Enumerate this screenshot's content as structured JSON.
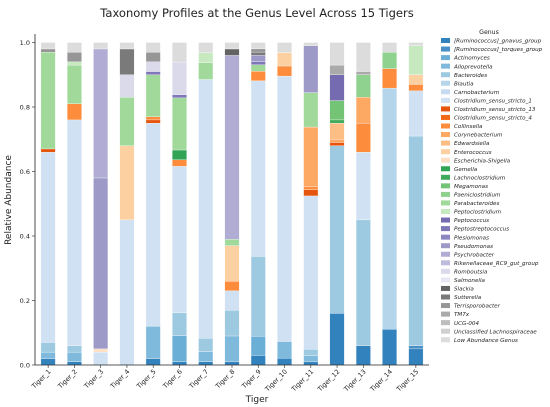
{
  "chart_data": {
    "type": "bar",
    "stacked": true,
    "title": "Taxonomy Profiles at the Genus Level Across 15 Tigers",
    "xlabel": "Tiger",
    "ylabel": "Relative Abundance",
    "ylim": [
      0,
      1.0
    ],
    "yticks": [
      "0.0",
      "0.2",
      "0.4",
      "0.6",
      "0.8",
      "1.0"
    ],
    "legend_title": "Genus",
    "legend_placement": "right",
    "categories": [
      "Tiger_1",
      "Tiger_2",
      "Tiger_3",
      "Tiger_4",
      "Tiger_5",
      "Tiger_6",
      "Tiger_7",
      "Tiger_8",
      "Tiger_9",
      "Tiger_10",
      "Tiger_11",
      "Tiger_12",
      "Tiger_13",
      "Tiger_14",
      "Tiger_15"
    ],
    "series": [
      {
        "name": "[Ruminococcus]_gnavus_group",
        "color": "#3182bd",
        "values": [
          0.02,
          0.01,
          0.0,
          0.0,
          0.02,
          0.01,
          0.01,
          0.01,
          0.03,
          0.02,
          0.01,
          0.16,
          0.06,
          0.11,
          0.05
        ]
      },
      {
        "name": "[Ruminococcus]_torques_group",
        "color": "#4a8fc6",
        "values": [
          0.0,
          0.0,
          0.0,
          0.0,
          0.0,
          0.0,
          0.0,
          0.0,
          0.0,
          0.0,
          0.0,
          0.0,
          0.0,
          0.0,
          0.01
        ]
      },
      {
        "name": "Actinomyces",
        "color": "#6baed6",
        "values": [
          0.0,
          0.0,
          0.0,
          0.0,
          0.0,
          0.08,
          0.0,
          0.0,
          0.06,
          0.0,
          0.0,
          0.0,
          0.0,
          0.0,
          0.0
        ]
      },
      {
        "name": "Alloprevotella",
        "color": "#7fbadc",
        "values": [
          0.02,
          0.03,
          0.0,
          0.0,
          0.1,
          0.0,
          0.03,
          0.08,
          0.0,
          0.05,
          0.02,
          0.0,
          0.0,
          0.0,
          0.0
        ]
      },
      {
        "name": "Bacteroides",
        "color": "#9ecae1",
        "values": [
          0.03,
          0.02,
          0.0,
          0.0,
          0.0,
          0.07,
          0.04,
          0.08,
          0.25,
          0.0,
          0.02,
          0.52,
          0.39,
          0.0,
          0.65
        ]
      },
      {
        "name": "Blautia",
        "color": "#b5d6ea",
        "values": [
          0.0,
          0.0,
          0.0,
          0.0,
          0.0,
          0.0,
          0.0,
          0.0,
          0.0,
          0.0,
          0.0,
          0.0,
          0.0,
          0.74,
          0.0
        ]
      },
      {
        "name": "Carnobacterium",
        "color": "#c6dbef",
        "values": [
          0.0,
          0.0,
          0.0,
          0.0,
          0.0,
          0.0,
          0.0,
          0.0,
          0.0,
          0.0,
          0.0,
          0.0,
          0.0,
          0.0,
          0.0
        ]
      },
      {
        "name": "Clostridium_sensu_stricto_1",
        "color": "#cfe1f2",
        "values": [
          0.59,
          0.7,
          0.04,
          0.45,
          0.63,
          0.45,
          0.77,
          0.06,
          0.55,
          0.79,
          0.49,
          0.0,
          0.21,
          0.0,
          0.14
        ]
      },
      {
        "name": "Clostridium_sensu_stricto_13",
        "color": "#e6550d",
        "values": [
          0.01,
          0.0,
          0.0,
          0.0,
          0.01,
          0.0,
          0.0,
          0.0,
          0.0,
          0.0,
          0.02,
          0.01,
          0.0,
          0.0,
          0.0
        ]
      },
      {
        "name": "Clostridium_sensu_stricto_4",
        "color": "#f16913",
        "values": [
          0.0,
          0.0,
          0.0,
          0.0,
          0.0,
          0.0,
          0.0,
          0.0,
          0.0,
          0.0,
          0.0,
          0.0,
          0.0,
          0.0,
          0.0
        ]
      },
      {
        "name": "Collinsella",
        "color": "#fd8d3c",
        "values": [
          0.0,
          0.05,
          0.0,
          0.0,
          0.01,
          0.02,
          0.0,
          0.03,
          0.03,
          0.03,
          0.01,
          0.0,
          0.09,
          0.06,
          0.02
        ]
      },
      {
        "name": "Corynebacterium",
        "color": "#fda863",
        "values": [
          0.0,
          0.0,
          0.0,
          0.0,
          0.0,
          0.0,
          0.0,
          0.0,
          0.0,
          0.0,
          0.19,
          0.01,
          0.08,
          0.0,
          0.0
        ]
      },
      {
        "name": "Edwardsiella",
        "color": "#fdbe85",
        "values": [
          0.0,
          0.0,
          0.0,
          0.0,
          0.0,
          0.0,
          0.0,
          0.0,
          0.0,
          0.0,
          0.0,
          0.05,
          0.0,
          0.0,
          0.0
        ]
      },
      {
        "name": "Enterococcus",
        "color": "#fdd0a2",
        "values": [
          0.0,
          0.0,
          0.0,
          0.23,
          0.0,
          0.0,
          0.0,
          0.11,
          0.0,
          0.04,
          0.0,
          0.0,
          0.0,
          0.0,
          0.03
        ]
      },
      {
        "name": "Escherichia-Shigella",
        "color": "#fde0c5",
        "values": [
          0.0,
          0.0,
          0.01,
          0.0,
          0.0,
          0.0,
          0.0,
          0.0,
          0.0,
          0.0,
          0.0,
          0.0,
          0.0,
          0.0,
          0.0
        ]
      },
      {
        "name": "Gemella",
        "color": "#31a354",
        "values": [
          0.0,
          0.0,
          0.0,
          0.0,
          0.0,
          0.03,
          0.0,
          0.0,
          0.0,
          0.0,
          0.0,
          0.0,
          0.0,
          0.0,
          0.0
        ]
      },
      {
        "name": "Lachnoclostridium",
        "color": "#41ab5d",
        "values": [
          0.0,
          0.0,
          0.0,
          0.0,
          0.0,
          0.0,
          0.0,
          0.0,
          0.0,
          0.0,
          0.0,
          0.01,
          0.0,
          0.0,
          0.0
        ]
      },
      {
        "name": "Megamonas",
        "color": "#74c476",
        "values": [
          0.0,
          0.0,
          0.0,
          0.0,
          0.0,
          0.0,
          0.0,
          0.0,
          0.0,
          0.0,
          0.0,
          0.06,
          0.0,
          0.0,
          0.0
        ]
      },
      {
        "name": "Paeniclostridium",
        "color": "#8fd18f",
        "values": [
          0.0,
          0.0,
          0.0,
          0.0,
          0.0,
          0.0,
          0.0,
          0.0,
          0.0,
          0.0,
          0.0,
          0.0,
          0.07,
          0.05,
          0.0
        ]
      },
      {
        "name": "Parabacteroides",
        "color": "#a1d99b",
        "values": [
          0.3,
          0.12,
          0.0,
          0.15,
          0.13,
          0.16,
          0.05,
          0.02,
          0.02,
          0.0,
          0.11,
          0.0,
          0.0,
          0.0,
          0.0
        ]
      },
      {
        "name": "Peptoclostridium",
        "color": "#c7e9c0",
        "values": [
          0.0,
          0.01,
          0.0,
          0.0,
          0.0,
          0.0,
          0.03,
          0.0,
          0.0,
          0.0,
          0.0,
          0.0,
          0.0,
          0.0,
          0.09
        ]
      },
      {
        "name": "Peptococcus",
        "color": "#756bb1",
        "values": [
          0.0,
          0.0,
          0.0,
          0.0,
          0.0,
          0.0,
          0.0,
          0.0,
          0.0,
          0.0,
          0.0,
          0.08,
          0.0,
          0.0,
          0.0
        ]
      },
      {
        "name": "Peptostreptococcus",
        "color": "#7e77b8",
        "values": [
          0.0,
          0.0,
          0.0,
          0.0,
          0.01,
          0.01,
          0.0,
          0.0,
          0.01,
          0.0,
          0.0,
          0.0,
          0.0,
          0.0,
          0.0
        ]
      },
      {
        "name": "Plesiomonas",
        "color": "#8c86c0",
        "values": [
          0.0,
          0.0,
          0.0,
          0.0,
          0.0,
          0.0,
          0.0,
          0.0,
          0.0,
          0.0,
          0.0,
          0.0,
          0.0,
          0.0,
          0.0
        ]
      },
      {
        "name": "Pseudomonas",
        "color": "#9e9ac8",
        "values": [
          0.0,
          0.0,
          0.53,
          0.0,
          0.0,
          0.0,
          0.0,
          0.0,
          0.02,
          0.0,
          0.15,
          0.0,
          0.0,
          0.0,
          0.0
        ]
      },
      {
        "name": "Psychrobacter",
        "color": "#b0acd4",
        "values": [
          0.0,
          0.0,
          0.4,
          0.0,
          0.0,
          0.0,
          0.0,
          0.57,
          0.0,
          0.0,
          0.0,
          0.0,
          0.0,
          0.0,
          0.0
        ]
      },
      {
        "name": "Rikenellaceae_RC9_gut_group",
        "color": "#bcbddc",
        "values": [
          0.0,
          0.0,
          0.0,
          0.0,
          0.0,
          0.0,
          0.0,
          0.0,
          0.0,
          0.0,
          0.0,
          0.0,
          0.0,
          0.0,
          0.0
        ]
      },
      {
        "name": "Romboutsia",
        "color": "#dadaeb",
        "values": [
          0.0,
          0.0,
          0.0,
          0.07,
          0.03,
          0.1,
          0.0,
          0.0,
          0.0,
          0.0,
          0.0,
          0.0,
          0.0,
          0.0,
          0.0
        ]
      },
      {
        "name": "Salmonella",
        "color": "#e8e8f2",
        "values": [
          0.0,
          0.0,
          0.0,
          0.0,
          0.0,
          0.0,
          0.0,
          0.0,
          0.0,
          0.0,
          0.0,
          0.0,
          0.0,
          0.0,
          0.0
        ]
      },
      {
        "name": "Slackia",
        "color": "#636363",
        "values": [
          0.0,
          0.0,
          0.0,
          0.0,
          0.0,
          0.0,
          0.0,
          0.02,
          0.0,
          0.0,
          0.0,
          0.0,
          0.0,
          0.0,
          0.0
        ]
      },
      {
        "name": "Sutterella",
        "color": "#7a7a7a",
        "values": [
          0.0,
          0.0,
          0.0,
          0.08,
          0.0,
          0.0,
          0.0,
          0.0,
          0.01,
          0.0,
          0.0,
          0.0,
          0.0,
          0.0,
          0.0
        ]
      },
      {
        "name": "Terrisporobacter",
        "color": "#969696",
        "values": [
          0.01,
          0.03,
          0.0,
          0.0,
          0.03,
          0.0,
          0.0,
          0.0,
          0.01,
          0.0,
          0.0,
          0.0,
          0.0,
          0.0,
          0.0
        ]
      },
      {
        "name": "TM7x",
        "color": "#aaaaaa",
        "values": [
          0.0,
          0.0,
          0.0,
          0.0,
          0.0,
          0.0,
          0.0,
          0.0,
          0.0,
          0.0,
          0.0,
          0.03,
          0.01,
          0.0,
          0.0
        ]
      },
      {
        "name": "UCG-004",
        "color": "#bdbdbd",
        "values": [
          0.0,
          0.0,
          0.0,
          0.0,
          0.0,
          0.0,
          0.0,
          0.0,
          0.0,
          0.0,
          0.0,
          0.0,
          0.0,
          0.0,
          0.0
        ]
      },
      {
        "name": "Unclassified Lachnospiraceae",
        "color": "#d0d0d0",
        "values": [
          0.0,
          0.0,
          0.0,
          0.0,
          0.0,
          0.0,
          0.0,
          0.0,
          0.0,
          0.0,
          0.0,
          0.0,
          0.0,
          0.0,
          0.0
        ]
      },
      {
        "name": "Low Abundance Genus",
        "color": "#dcdcdc",
        "values": [
          0.02,
          0.03,
          0.02,
          0.02,
          0.03,
          0.06,
          0.03,
          0.02,
          0.02,
          0.03,
          0.01,
          0.07,
          0.09,
          0.03,
          0.01
        ]
      }
    ]
  }
}
